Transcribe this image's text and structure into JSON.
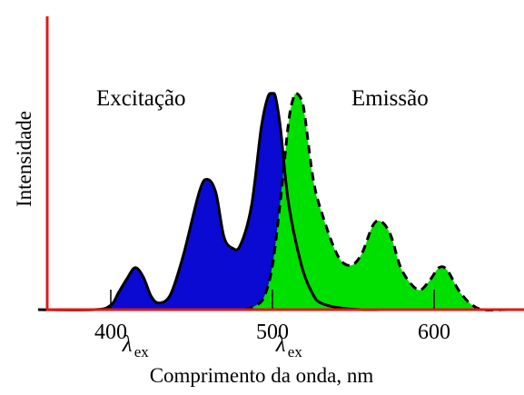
{
  "chart_data": {
    "type": "area",
    "xlabel": "Comprimento da onda, nm",
    "ylabel": "Intensidade",
    "xlim": [
      355,
      650
    ],
    "ylim": [
      0,
      1
    ],
    "x_ticks": [
      400,
      500,
      600
    ],
    "x_tick_labels": [
      "400",
      "500",
      "600"
    ],
    "grid": false,
    "annotations": [
      {
        "text": "λ",
        "sub": "ex",
        "x": 415
      },
      {
        "text": "λ",
        "sub": "ex",
        "x": 510
      }
    ],
    "colors": {
      "excitation": "#0a0ad2",
      "emission": "#00e000",
      "axis": "#e01818"
    },
    "series": [
      {
        "name": "Excitação",
        "line": "solid",
        "x": [
          355,
          390,
          400,
          405,
          410,
          415,
          420,
          425,
          430,
          437,
          445,
          455,
          460,
          465,
          470,
          475,
          480,
          487,
          493,
          497,
          500,
          502,
          505,
          510,
          518,
          525,
          530,
          540,
          555,
          570
        ],
        "values": [
          0,
          0,
          0.02,
          0.08,
          0.14,
          0.19,
          0.15,
          0.06,
          0.03,
          0.07,
          0.25,
          0.54,
          0.59,
          0.53,
          0.33,
          0.28,
          0.29,
          0.47,
          0.82,
          0.96,
          0.98,
          0.96,
          0.82,
          0.48,
          0.2,
          0.07,
          0.03,
          0.01,
          0,
          0
        ]
      },
      {
        "name": "Emissão",
        "line": "dashed",
        "x": [
          483,
          490,
          495,
          500,
          505,
          510,
          513,
          515,
          518,
          520,
          525,
          530,
          540,
          548,
          555,
          562,
          567,
          573,
          580,
          590,
          597,
          603,
          608,
          615,
          622,
          630,
          645
        ],
        "values": [
          0,
          0.02,
          0.06,
          0.2,
          0.5,
          0.85,
          0.96,
          0.98,
          0.95,
          0.88,
          0.6,
          0.45,
          0.25,
          0.2,
          0.25,
          0.38,
          0.4,
          0.34,
          0.18,
          0.09,
          0.13,
          0.19,
          0.18,
          0.09,
          0.03,
          0,
          0
        ]
      }
    ]
  }
}
